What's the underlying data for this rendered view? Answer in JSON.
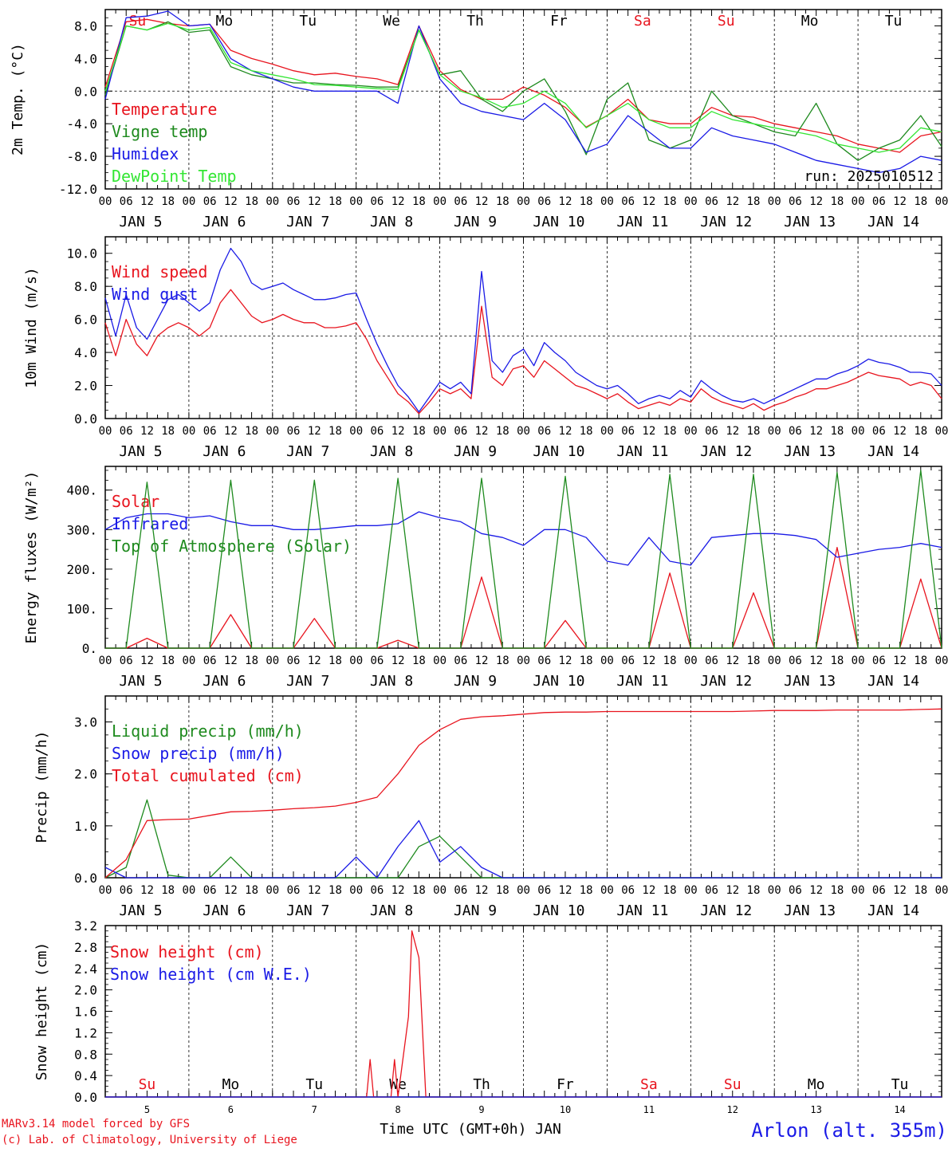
{
  "colors": {
    "red": "#e8141e",
    "green": "#1e8a1e",
    "blue": "#1a1ae6",
    "lightgreen": "#33e633",
    "black": "#000000"
  },
  "hour_ticks": [
    "00",
    "06",
    "12",
    "18"
  ],
  "final_tick": "00",
  "dates": [
    "JAN  5",
    "JAN  6",
    "JAN  7",
    "JAN  8",
    "JAN  9",
    "JAN 10",
    "JAN 11",
    "JAN 12",
    "JAN 13",
    "JAN 14"
  ],
  "days": {
    "names": [
      "Su",
      "Mo",
      "Tu",
      "We",
      "Th",
      "Fr",
      "Sa",
      "Su",
      "Mo",
      "Tu"
    ],
    "colors": [
      "red",
      "black",
      "black",
      "black",
      "black",
      "black",
      "red",
      "red",
      "black",
      "black"
    ],
    "numbers": [
      "5",
      "6",
      "7",
      "8",
      "9",
      "10",
      "11",
      "12",
      "13",
      "14"
    ]
  },
  "footer": {
    "model": "MARv3.14 model forced by GFS",
    "lab": "(c) Lab. of Climatology, University of Liege",
    "xlabel": "Time UTC (GMT+0h) JAN",
    "station": "Arlon (alt. 355m)"
  },
  "chart_data": [
    {
      "type": "line",
      "ylabel": "2m Temp. (°C)",
      "ylim": [
        -12,
        10
      ],
      "yticks": [
        "8.0",
        "4.0",
        "0.0",
        "-4.0",
        "-8.0",
        "-12.0"
      ],
      "ytick_values": [
        8,
        4,
        0,
        -4,
        -8,
        -12
      ],
      "reference_line": 0,
      "annotation": "run: 2025010512",
      "x": [
        0,
        6,
        12,
        18,
        24,
        30,
        36,
        42,
        48,
        54,
        60,
        66,
        72,
        78,
        84,
        90,
        96,
        102,
        108,
        114,
        120,
        126,
        132,
        138,
        144,
        150,
        156,
        162,
        168,
        174,
        180,
        186,
        192,
        198,
        204,
        210,
        216,
        222,
        228,
        234,
        240
      ],
      "series": [
        {
          "name": "Temperature",
          "color": "red",
          "values": [
            0.5,
            8.5,
            8.8,
            8.3,
            8.0,
            8.2,
            5.0,
            4.0,
            3.3,
            2.5,
            2.0,
            2.2,
            1.8,
            1.5,
            0.8,
            8.0,
            2.5,
            0.2,
            -1.0,
            -1.0,
            0.5,
            -0.5,
            -2.0,
            -4.4,
            -3.0,
            -1.0,
            -3.5,
            -4.0,
            -4.0,
            -2.0,
            -3.0,
            -3.2,
            -4.0,
            -4.5,
            -5.0,
            -5.5,
            -6.5,
            -7.0,
            -7.5,
            -5.5,
            -5.0
          ]
        },
        {
          "name": "Vigne temp",
          "color": "green",
          "values": [
            -0.5,
            8.0,
            7.5,
            8.5,
            7.2,
            7.5,
            3.0,
            2.0,
            1.5,
            1.0,
            1.0,
            0.8,
            0.7,
            0.5,
            0.5,
            7.5,
            2.0,
            2.5,
            -1.0,
            -2.5,
            0.0,
            1.5,
            -2.5,
            -7.8,
            -1.0,
            1.0,
            -6.0,
            -7.0,
            -6.0,
            0.0,
            -3.0,
            -4.0,
            -5.0,
            -5.5,
            -1.5,
            -6.5,
            -8.5,
            -7.0,
            -6.0,
            -3.0,
            -6.8
          ]
        },
        {
          "name": "Humidex",
          "color": "blue",
          "values": [
            -1.0,
            9.0,
            9.2,
            9.8,
            8.0,
            8.2,
            4.0,
            2.5,
            1.5,
            0.5,
            0.0,
            0.0,
            0.0,
            0.0,
            -1.5,
            8.0,
            1.5,
            -1.5,
            -2.5,
            -3.0,
            -3.5,
            -1.5,
            -3.5,
            -7.5,
            -6.5,
            -3.0,
            -5.0,
            -7.0,
            -7.0,
            -4.5,
            -5.5,
            -6.0,
            -6.5,
            -7.5,
            -8.5,
            -9.0,
            -9.5,
            -10.0,
            -9.5,
            -8.0,
            -8.5
          ]
        },
        {
          "name": "DewPoint Temp",
          "color": "lightgreen",
          "values": [
            0.0,
            8.0,
            7.5,
            8.3,
            7.5,
            7.8,
            3.5,
            2.5,
            2.0,
            1.5,
            0.8,
            0.7,
            0.5,
            0.3,
            0.2,
            7.5,
            2.0,
            0.0,
            -0.8,
            -2.0,
            -1.5,
            0.0,
            -1.5,
            -4.5,
            -3.0,
            -1.5,
            -3.5,
            -4.5,
            -4.5,
            -2.5,
            -3.5,
            -4.0,
            -4.5,
            -5.0,
            -5.5,
            -6.5,
            -7.0,
            -7.5,
            -7.0,
            -4.5,
            -5.0
          ]
        }
      ]
    },
    {
      "type": "line",
      "ylabel": "10m Wind (m/s)",
      "ylim": [
        0,
        11
      ],
      "yticks": [
        "10.0",
        "8.0",
        "6.0",
        "4.0",
        "2.0",
        "0.0"
      ],
      "ytick_values": [
        10,
        8,
        6,
        4,
        2,
        0
      ],
      "reference_line": 5,
      "x": [
        0,
        3,
        6,
        9,
        12,
        15,
        18,
        21,
        24,
        27,
        30,
        33,
        36,
        39,
        42,
        45,
        48,
        51,
        54,
        57,
        60,
        63,
        66,
        69,
        72,
        75,
        78,
        81,
        84,
        87,
        90,
        93,
        96,
        99,
        102,
        105,
        108,
        111,
        114,
        117,
        120,
        123,
        126,
        129,
        132,
        135,
        138,
        141,
        144,
        147,
        150,
        153,
        156,
        159,
        162,
        165,
        168,
        171,
        174,
        177,
        180,
        183,
        186,
        189,
        192,
        195,
        198,
        201,
        204,
        207,
        210,
        213,
        216,
        219,
        222,
        225,
        228,
        231,
        234,
        237,
        240
      ],
      "series": [
        {
          "name": "Wind speed",
          "color": "red",
          "values": [
            5.8,
            3.8,
            6.0,
            4.5,
            3.8,
            5.0,
            5.5,
            5.8,
            5.5,
            5.0,
            5.5,
            7.0,
            7.8,
            7.0,
            6.2,
            5.8,
            6.0,
            6.3,
            6.0,
            5.8,
            5.8,
            5.5,
            5.5,
            5.6,
            5.8,
            4.8,
            3.5,
            2.5,
            1.5,
            1.0,
            0.3,
            1.0,
            1.8,
            1.5,
            1.8,
            1.2,
            6.8,
            2.5,
            2.0,
            3.0,
            3.2,
            2.5,
            3.5,
            3.0,
            2.5,
            2.0,
            1.8,
            1.5,
            1.2,
            1.5,
            1.0,
            0.6,
            0.8,
            1.0,
            0.8,
            1.2,
            1.0,
            1.8,
            1.3,
            1.0,
            0.8,
            0.6,
            0.9,
            0.5,
            0.8,
            1.0,
            1.3,
            1.5,
            1.8,
            1.8,
            2.0,
            2.2,
            2.5,
            2.8,
            2.6,
            2.5,
            2.4,
            2.0,
            2.2,
            2.0,
            1.2
          ]
        },
        {
          "name": "Wind gust",
          "color": "blue",
          "values": [
            7.3,
            5.0,
            7.5,
            5.5,
            4.8,
            6.0,
            7.2,
            7.5,
            7.0,
            6.5,
            7.0,
            9.0,
            10.3,
            9.5,
            8.2,
            7.8,
            8.0,
            8.2,
            7.8,
            7.5,
            7.2,
            7.2,
            7.3,
            7.5,
            7.6,
            6.0,
            4.5,
            3.2,
            2.0,
            1.3,
            0.4,
            1.3,
            2.2,
            1.8,
            2.2,
            1.5,
            8.9,
            3.5,
            2.8,
            3.8,
            4.2,
            3.2,
            4.6,
            4.0,
            3.5,
            2.8,
            2.4,
            2.0,
            1.8,
            2.0,
            1.5,
            0.9,
            1.2,
            1.4,
            1.2,
            1.7,
            1.3,
            2.3,
            1.8,
            1.4,
            1.1,
            1.0,
            1.2,
            0.9,
            1.2,
            1.5,
            1.8,
            2.1,
            2.4,
            2.4,
            2.7,
            2.9,
            3.2,
            3.6,
            3.4,
            3.3,
            3.1,
            2.8,
            2.8,
            2.7,
            2.0
          ]
        }
      ]
    },
    {
      "type": "line",
      "ylabel": "Energy fluxes (W/m²)",
      "ylim": [
        0,
        460
      ],
      "yticks": [
        "400.",
        "300.",
        "200.",
        "100.",
        "0."
      ],
      "ytick_values": [
        400,
        300,
        200,
        100,
        0
      ],
      "x": [
        0,
        6,
        12,
        18,
        24,
        30,
        36,
        42,
        48,
        54,
        60,
        66,
        72,
        78,
        84,
        90,
        96,
        102,
        108,
        114,
        120,
        126,
        132,
        138,
        144,
        150,
        156,
        162,
        168,
        174,
        180,
        186,
        192,
        198,
        204,
        210,
        216,
        222,
        228,
        234,
        240
      ],
      "series": [
        {
          "name": "Solar",
          "color": "red",
          "values": [
            0,
            0,
            25,
            0,
            0,
            0,
            85,
            0,
            0,
            0,
            75,
            0,
            0,
            0,
            20,
            0,
            0,
            0,
            180,
            0,
            0,
            0,
            70,
            0,
            0,
            0,
            0,
            190,
            0,
            0,
            0,
            140,
            0,
            0,
            0,
            255,
            0,
            0,
            0,
            175,
            0
          ]
        },
        {
          "name": "Infrared",
          "color": "blue",
          "values": [
            300,
            330,
            340,
            340,
            330,
            335,
            320,
            310,
            310,
            300,
            300,
            305,
            310,
            310,
            315,
            345,
            330,
            320,
            290,
            280,
            260,
            300,
            300,
            280,
            220,
            210,
            280,
            220,
            210,
            280,
            285,
            290,
            290,
            285,
            275,
            230,
            240,
            250,
            255,
            265,
            255
          ]
        },
        {
          "name": "Top of Atmosphere (Solar)",
          "color": "green",
          "values": [
            0,
            0,
            420,
            0,
            0,
            0,
            425,
            0,
            0,
            0,
            425,
            0,
            0,
            0,
            430,
            0,
            0,
            0,
            430,
            0,
            0,
            0,
            435,
            0,
            0,
            0,
            0,
            440,
            0,
            0,
            0,
            440,
            0,
            0,
            0,
            445,
            0,
            0,
            0,
            450,
            0
          ]
        }
      ]
    },
    {
      "type": "line",
      "ylabel": "Precip (mm/h)",
      "ylim": [
        0,
        3.5
      ],
      "yticks": [
        "3.0",
        "2.0",
        "1.0",
        "0.0"
      ],
      "ytick_values": [
        3,
        2,
        1,
        0
      ],
      "x": [
        0,
        6,
        12,
        18,
        24,
        30,
        36,
        42,
        48,
        54,
        60,
        66,
        72,
        78,
        84,
        90,
        96,
        102,
        108,
        114,
        120,
        126,
        132,
        138,
        144,
        150,
        156,
        162,
        168,
        174,
        180,
        186,
        192,
        198,
        204,
        210,
        216,
        222,
        228,
        234,
        240
      ],
      "series": [
        {
          "name": "Liquid precip (mm/h)",
          "color": "green",
          "values": [
            0,
            0.2,
            1.5,
            0.05,
            0,
            0,
            0.4,
            0,
            0,
            0,
            0,
            0,
            0,
            0,
            0,
            0.6,
            0.8,
            0.4,
            0,
            0,
            0,
            0,
            0,
            0,
            0,
            0,
            0,
            0,
            0,
            0,
            0,
            0,
            0,
            0,
            0,
            0,
            0,
            0,
            0,
            0,
            0
          ]
        },
        {
          "name": "Snow precip (mm/h)",
          "color": "blue",
          "values": [
            0.2,
            0,
            0,
            0,
            0,
            0,
            0,
            0,
            0,
            0,
            0,
            0,
            0.4,
            0,
            0.6,
            1.1,
            0.3,
            0.6,
            0.2,
            0,
            0,
            0,
            0,
            0,
            0,
            0,
            0,
            0,
            0,
            0,
            0,
            0,
            0,
            0,
            0,
            0,
            0,
            0,
            0,
            0,
            0
          ]
        },
        {
          "name": "Total cumulated (cm)",
          "color": "red",
          "values": [
            0,
            0.35,
            1.1,
            1.12,
            1.13,
            1.2,
            1.27,
            1.28,
            1.3,
            1.33,
            1.35,
            1.38,
            1.45,
            1.55,
            2.0,
            2.55,
            2.85,
            3.05,
            3.1,
            3.12,
            3.15,
            3.18,
            3.19,
            3.19,
            3.2,
            3.2,
            3.2,
            3.2,
            3.2,
            3.2,
            3.2,
            3.21,
            3.22,
            3.22,
            3.22,
            3.23,
            3.23,
            3.23,
            3.23,
            3.24,
            3.25
          ]
        }
      ]
    },
    {
      "type": "line",
      "ylabel": "Snow height (cm)",
      "ylim": [
        0,
        3.2
      ],
      "yticks": [
        "3.2",
        "2.8",
        "2.4",
        "2.0",
        "1.6",
        "1.2",
        "0.8",
        "0.4",
        "0.0"
      ],
      "ytick_values": [
        3.2,
        2.8,
        2.4,
        2.0,
        1.6,
        1.2,
        0.8,
        0.4,
        0.0
      ],
      "x": [
        0,
        6,
        12,
        18,
        24,
        30,
        36,
        42,
        48,
        54,
        60,
        66,
        72,
        75,
        76,
        77,
        78,
        80,
        82,
        83,
        84,
        87,
        88,
        90,
        92,
        95,
        96,
        102,
        108,
        114,
        120,
        126,
        132,
        138,
        144,
        150,
        156,
        162,
        168,
        174,
        180,
        186,
        192,
        198,
        204,
        210,
        216,
        222,
        228,
        234,
        240
      ],
      "series": [
        {
          "name": "Snow height (cm)",
          "color": "red",
          "values": [
            0,
            0,
            0,
            0,
            0,
            0,
            0,
            0,
            0,
            0,
            0,
            0,
            0,
            0,
            0.7,
            0,
            0,
            0,
            0,
            0.7,
            0,
            1.5,
            3.1,
            2.6,
            0,
            0,
            0,
            0,
            0,
            0,
            0,
            0,
            0,
            0,
            0,
            0,
            0,
            0,
            0,
            0,
            0,
            0,
            0,
            0,
            0,
            0,
            0,
            0,
            0,
            0,
            0
          ]
        },
        {
          "name": "Snow height (cm W.E.)",
          "color": "blue",
          "values": [
            0,
            0,
            0,
            0,
            0,
            0,
            0,
            0,
            0,
            0,
            0,
            0,
            0,
            0,
            0,
            0,
            0,
            0,
            0,
            0,
            0,
            0,
            0,
            0,
            0,
            0,
            0,
            0,
            0,
            0,
            0,
            0,
            0,
            0,
            0,
            0,
            0,
            0,
            0,
            0,
            0,
            0,
            0,
            0,
            0,
            0,
            0,
            0,
            0,
            0,
            0
          ]
        }
      ]
    }
  ]
}
